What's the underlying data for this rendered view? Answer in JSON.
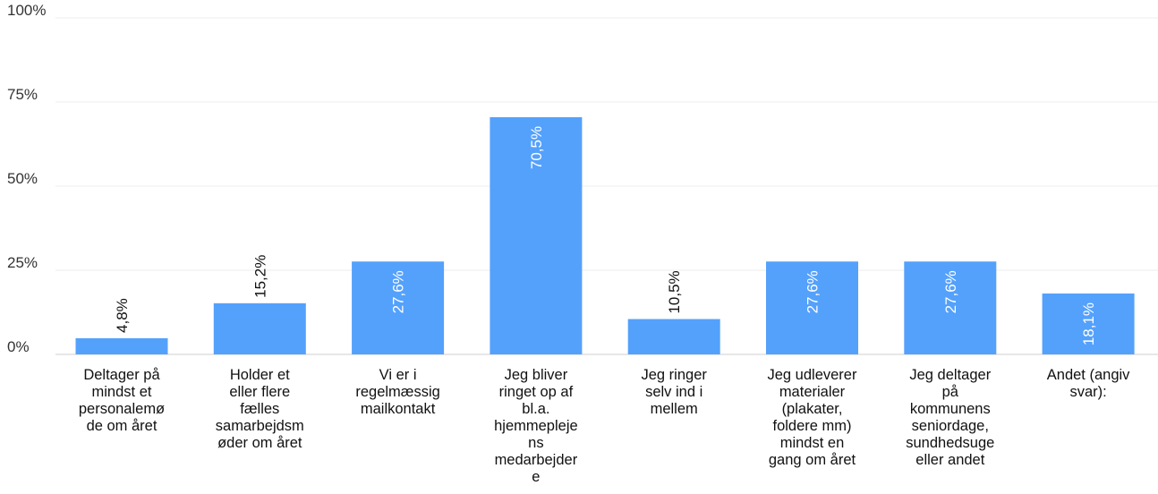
{
  "colors": {
    "bar": "#54a1fc",
    "label_inside": "#ffffff",
    "label_outside": "#111111"
  },
  "chart_data": {
    "type": "bar",
    "title": "",
    "xlabel": "",
    "ylabel": "",
    "ylim": [
      0,
      100
    ],
    "yticks": [
      0,
      25,
      50,
      75,
      100
    ],
    "ytick_labels": [
      "0%",
      "25%",
      "50%",
      "75%",
      "100%"
    ],
    "grid": true,
    "legend": "none",
    "categories": [
      "Deltager på\nmindst et\npersonalemø\nde om året",
      "Holder et\neller flere\nfælles\nsamarbejdsm\nøder om året",
      "Vi er i\nregelmæssig\nmailkontakt",
      "Jeg bliver\nringet op af\nbl.a.\nhjemmepleje\nns\nmedarbejder\ne",
      "Jeg ringer\nselv ind i\nmellem",
      "Jeg udleverer\nmaterialer\n(plakater,\nfoldere mm)\nmindst en\ngang om året",
      "Jeg deltager\npå\nkommunens\nseniordage,\nsundhedsuge\neller andet",
      "Andet (angiv\nsvar):"
    ],
    "values": [
      4.8,
      15.2,
      27.6,
      70.5,
      10.5,
      27.6,
      27.6,
      18.1
    ],
    "value_labels": [
      "4,8%",
      "15,2%",
      "27,6%",
      "70,5%",
      "10,5%",
      "27,6%",
      "27,6%",
      "18,1%"
    ]
  }
}
